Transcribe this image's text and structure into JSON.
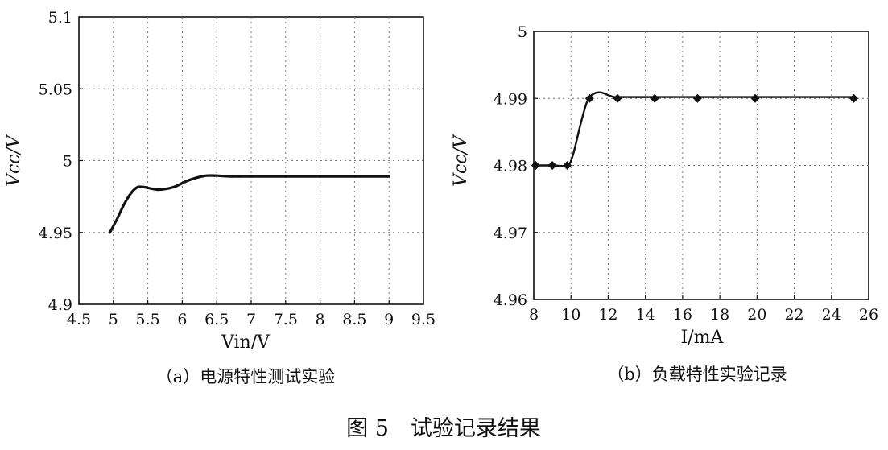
{
  "figure_caption": "图 5　试验记录结果",
  "chart_data": [
    {
      "type": "line",
      "caption": "（a）电源特性测试实验",
      "xlabel": "Vin/V",
      "ylabel": "Vcc/V",
      "xlim": [
        4.5,
        9.5
      ],
      "ylim": [
        4.9,
        5.1
      ],
      "xticks": [
        "4.5",
        "5",
        "5.5",
        "6",
        "6.5",
        "7",
        "7.5",
        "8",
        "8.5",
        "9",
        "9.5"
      ],
      "yticks": [
        "4.9",
        "4.95",
        "5",
        "5.05",
        "5.1"
      ],
      "grid": true,
      "x": [
        4.95,
        5.05,
        5.15,
        5.25,
        5.35,
        5.45,
        5.55,
        5.65,
        5.75,
        5.9,
        6.05,
        6.2,
        6.35,
        6.5,
        6.7,
        7.0,
        7.5,
        8.0,
        8.5,
        9.0
      ],
      "y": [
        4.95,
        4.959,
        4.969,
        4.977,
        4.9815,
        4.9815,
        4.9805,
        4.9798,
        4.9802,
        4.982,
        4.9855,
        4.988,
        4.9895,
        4.9895,
        4.989,
        4.989,
        4.989,
        4.989,
        4.989,
        4.989
      ]
    },
    {
      "type": "line",
      "caption": "（b）负载特性实验记录",
      "xlabel": "I/mA",
      "ylabel": "Vcc/V",
      "xlim": [
        8,
        26
      ],
      "ylim": [
        4.96,
        5.0
      ],
      "xticks": [
        "8",
        "10",
        "12",
        "14",
        "16",
        "18",
        "20",
        "22",
        "24",
        "26"
      ],
      "yticks": [
        "4.96",
        "4.97",
        "4.98",
        "4.99",
        "5"
      ],
      "grid": true,
      "markers": "diamond",
      "points": {
        "x": [
          8.1,
          9.0,
          9.8,
          11.0,
          12.5,
          14.5,
          16.8,
          19.9,
          25.2
        ],
        "y": [
          4.98,
          4.98,
          4.98,
          4.99,
          4.99,
          4.99,
          4.99,
          4.99,
          4.99
        ]
      },
      "curve": {
        "x": [
          8.1,
          9.0,
          9.8,
          10.1,
          10.5,
          10.8,
          11.0,
          11.3,
          11.6,
          11.9,
          12.2,
          12.5,
          14.5,
          16.8,
          19.9,
          25.2
        ],
        "y": [
          4.98,
          4.98,
          4.98,
          4.9815,
          4.986,
          4.989,
          4.9902,
          4.9908,
          4.9909,
          4.9906,
          4.9903,
          4.9902,
          4.9902,
          4.9902,
          4.9902,
          4.9902
        ]
      }
    }
  ]
}
